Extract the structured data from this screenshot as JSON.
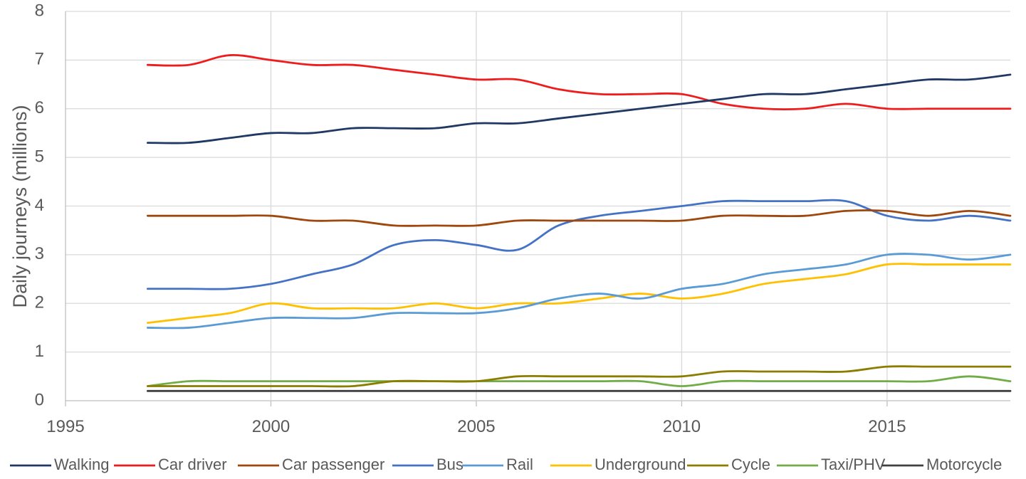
{
  "chart_data": {
    "type": "line",
    "title": "",
    "xlabel": "",
    "ylabel": "Daily journeys (millions)",
    "xlim": [
      1995,
      2018
    ],
    "ylim": [
      0,
      8
    ],
    "x_ticks": [
      1995,
      2000,
      2005,
      2010,
      2015
    ],
    "y_ticks": [
      0,
      1,
      2,
      3,
      4,
      5,
      6,
      7,
      8
    ],
    "grid": true,
    "legend_position": "bottom",
    "x": [
      1997,
      1998,
      1999,
      2000,
      2001,
      2002,
      2003,
      2004,
      2005,
      2006,
      2007,
      2008,
      2009,
      2010,
      2011,
      2012,
      2013,
      2014,
      2015,
      2016,
      2017,
      2018
    ],
    "series": [
      {
        "name": "Walking",
        "color": "#203864",
        "values": [
          5.3,
          5.3,
          5.4,
          5.5,
          5.5,
          5.6,
          5.6,
          5.6,
          5.7,
          5.7,
          5.8,
          5.9,
          6.0,
          6.1,
          6.2,
          6.3,
          6.3,
          6.4,
          6.5,
          6.6,
          6.6,
          6.7
        ]
      },
      {
        "name": "Car driver",
        "color": "#ee1c1c",
        "values": [
          6.9,
          6.9,
          7.1,
          7.0,
          6.9,
          6.9,
          6.8,
          6.7,
          6.6,
          6.6,
          6.4,
          6.3,
          6.3,
          6.3,
          6.1,
          6.0,
          6.0,
          6.1,
          6.0,
          6.0,
          6.0,
          6.0
        ]
      },
      {
        "name": "Car passenger",
        "color": "#9e480e",
        "values": [
          3.8,
          3.8,
          3.8,
          3.8,
          3.7,
          3.7,
          3.6,
          3.6,
          3.6,
          3.7,
          3.7,
          3.7,
          3.7,
          3.7,
          3.8,
          3.8,
          3.8,
          3.9,
          3.9,
          3.8,
          3.9,
          3.8
        ]
      },
      {
        "name": "Bus",
        "color": "#4472c4",
        "values": [
          2.3,
          2.3,
          2.3,
          2.4,
          2.6,
          2.8,
          3.2,
          3.3,
          3.2,
          3.1,
          3.6,
          3.8,
          3.9,
          4.0,
          4.1,
          4.1,
          4.1,
          4.1,
          3.8,
          3.7,
          3.8,
          3.7
        ]
      },
      {
        "name": "Rail",
        "color": "#5b9bd5",
        "values": [
          1.5,
          1.5,
          1.6,
          1.7,
          1.7,
          1.7,
          1.8,
          1.8,
          1.8,
          1.9,
          2.1,
          2.2,
          2.1,
          2.3,
          2.4,
          2.6,
          2.7,
          2.8,
          3.0,
          3.0,
          2.9,
          3.0
        ]
      },
      {
        "name": "Underground",
        "color": "#ffc000",
        "values": [
          1.6,
          1.7,
          1.8,
          2.0,
          1.9,
          1.9,
          1.9,
          2.0,
          1.9,
          2.0,
          2.0,
          2.1,
          2.2,
          2.1,
          2.2,
          2.4,
          2.5,
          2.6,
          2.8,
          2.8,
          2.8,
          2.8
        ]
      },
      {
        "name": "Cycle",
        "color": "#8b7d00",
        "values": [
          0.3,
          0.3,
          0.3,
          0.3,
          0.3,
          0.3,
          0.4,
          0.4,
          0.4,
          0.5,
          0.5,
          0.5,
          0.5,
          0.5,
          0.6,
          0.6,
          0.6,
          0.6,
          0.7,
          0.7,
          0.7,
          0.7
        ]
      },
      {
        "name": "Taxi/PHV",
        "color": "#70ad47",
        "values": [
          0.3,
          0.4,
          0.4,
          0.4,
          0.4,
          0.4,
          0.4,
          0.4,
          0.4,
          0.4,
          0.4,
          0.4,
          0.4,
          0.3,
          0.4,
          0.4,
          0.4,
          0.4,
          0.4,
          0.4,
          0.5,
          0.4
        ]
      },
      {
        "name": "Motorcycle",
        "color": "#404040",
        "values": [
          0.2,
          0.2,
          0.2,
          0.2,
          0.2,
          0.2,
          0.2,
          0.2,
          0.2,
          0.2,
          0.2,
          0.2,
          0.2,
          0.2,
          0.2,
          0.2,
          0.2,
          0.2,
          0.2,
          0.2,
          0.2,
          0.2
        ]
      }
    ]
  }
}
